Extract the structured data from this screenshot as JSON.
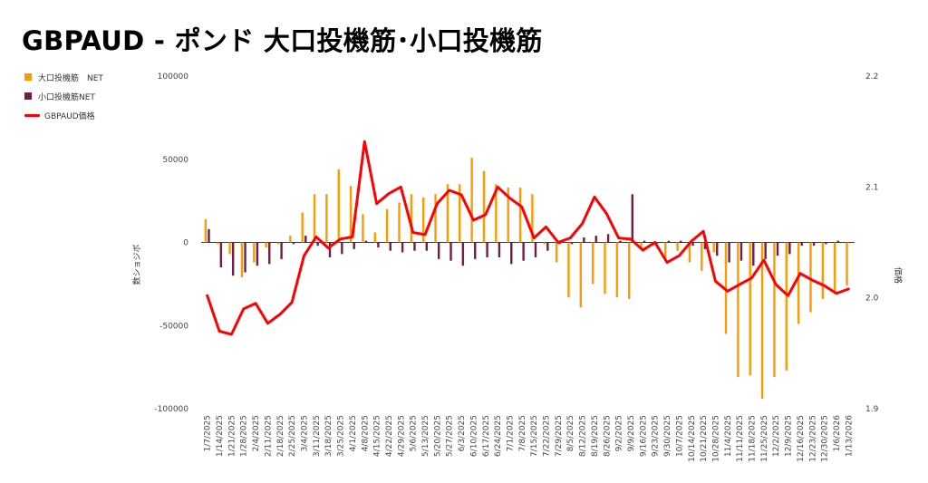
{
  "title": "GBPAUD - ポンド 大口投機筋･小口投機筋",
  "legend": [
    {
      "label": "大口投機筋　NET",
      "color": "#FF9900",
      "kind": "bar"
    },
    {
      "label": "小口投機筋NET",
      "color": "#741B47",
      "kind": "bar"
    },
    {
      "label": "GBPAUD価格",
      "color": "#FF0000",
      "kind": "line"
    }
  ],
  "chart_data": {
    "type": "bar+line",
    "title": "GBPAUD - ポンド 大口投機筋･小口投機筋",
    "ylabel_left": "数ショジボ",
    "ylabel_right": "価格",
    "ylim_left": [
      -100000,
      100000
    ],
    "ylim_right": [
      1.9,
      2.2
    ],
    "yticks_left": [
      "100000",
      "50000",
      "0",
      "-50000",
      "-100000"
    ],
    "yticks_right": [
      "2.2",
      "2.1",
      "2.0",
      "1.9"
    ],
    "categories": [
      "1/7/2025",
      "1/14/2025",
      "1/21/2025",
      "1/28/2025",
      "2/4/2025",
      "2/11/2025",
      "2/18/2025",
      "2/25/2025",
      "3/4/2025",
      "3/11/2025",
      "3/18/2025",
      "3/25/2025",
      "4/1/2025",
      "4/8/2025",
      "4/15/2025",
      "4/22/2025",
      "4/29/2025",
      "5/6/2025",
      "5/13/2025",
      "5/20/2025",
      "5/27/2025",
      "6/3/2025",
      "6/10/2025",
      "6/17/2025",
      "6/24/2025",
      "7/1/2025",
      "7/8/2025",
      "7/15/2025",
      "7/22/2025",
      "7/29/2025",
      "8/5/2025",
      "8/12/2025",
      "8/19/2025",
      "8/26/2025",
      "9/2/2025",
      "9/9/2025",
      "9/16/2025",
      "9/23/2025",
      "9/30/2025",
      "10/7/2025",
      "10/14/2025",
      "10/21/2025",
      "10/28/2025",
      "11/4/2025",
      "11/11/2025",
      "11/18/2025",
      "11/25/2025",
      "12/2/2025",
      "12/9/2025",
      "12/16/2025",
      "12/23/2025",
      "12/30/2025",
      "1/6/2026",
      "1/13/2026"
    ],
    "series": [
      {
        "name": "大口投機筋　NET",
        "type": "bar",
        "axis": "left",
        "color": "#FF9900",
        "values": [
          14000,
          -1000,
          -7000,
          -21000,
          -12000,
          -3000,
          -1000,
          4000,
          18000,
          29000,
          29000,
          44000,
          34000,
          17000,
          6000,
          20000,
          24000,
          29000,
          27000,
          29000,
          35000,
          35000,
          51000,
          43000,
          35000,
          33000,
          33000,
          29000,
          -1000,
          -12000,
          -33000,
          -39000,
          -25000,
          -31000,
          -33000,
          -34000,
          -4000,
          -2000,
          -9000,
          -5000,
          -12000,
          -17000,
          -6000,
          -55000,
          -81000,
          -80000,
          -94000,
          -81000,
          -77000,
          -49000,
          -42000,
          -34000,
          -31000,
          -26000
        ]
      },
      {
        "name": "小口投機筋NET",
        "type": "bar",
        "axis": "left",
        "color": "#741B47",
        "values": [
          8000,
          -15000,
          -20000,
          -18000,
          -14000,
          -13000,
          -10000,
          -1000,
          4000,
          -2000,
          -9000,
          -7000,
          -4000,
          1000,
          -3000,
          -5000,
          -6000,
          -5000,
          -5000,
          -10000,
          -11000,
          -14000,
          -10000,
          -9000,
          -9000,
          -13000,
          -11000,
          -9000,
          -5000,
          -1000,
          -1000,
          3000,
          4000,
          5000,
          1000,
          29000,
          1000,
          -1000,
          1000,
          1000,
          -2000,
          -4000,
          -8000,
          -12000,
          -11000,
          -14000,
          -10000,
          -8000,
          -7000,
          -2000,
          -2000,
          -1000,
          1000,
          0
        ]
      },
      {
        "name": "GBPAUD価格",
        "type": "line",
        "axis": "right",
        "color": "#FF0000",
        "values": [
          2.002,
          1.97,
          1.967,
          1.99,
          1.995,
          1.977,
          1.985,
          1.996,
          2.038,
          2.055,
          2.045,
          2.053,
          2.055,
          2.141,
          2.085,
          2.094,
          2.1,
          2.059,
          2.057,
          2.085,
          2.097,
          2.093,
          2.07,
          2.075,
          2.1,
          2.09,
          2.082,
          2.054,
          2.064,
          2.05,
          2.054,
          2.067,
          2.091,
          2.076,
          2.054,
          2.053,
          2.043,
          2.05,
          2.032,
          2.038,
          2.051,
          2.06,
          2.015,
          2.006,
          2.012,
          2.018,
          2.034,
          2.012,
          2.002,
          2.022,
          2.016,
          2.011,
          2.004,
          2.008
        ]
      }
    ]
  }
}
